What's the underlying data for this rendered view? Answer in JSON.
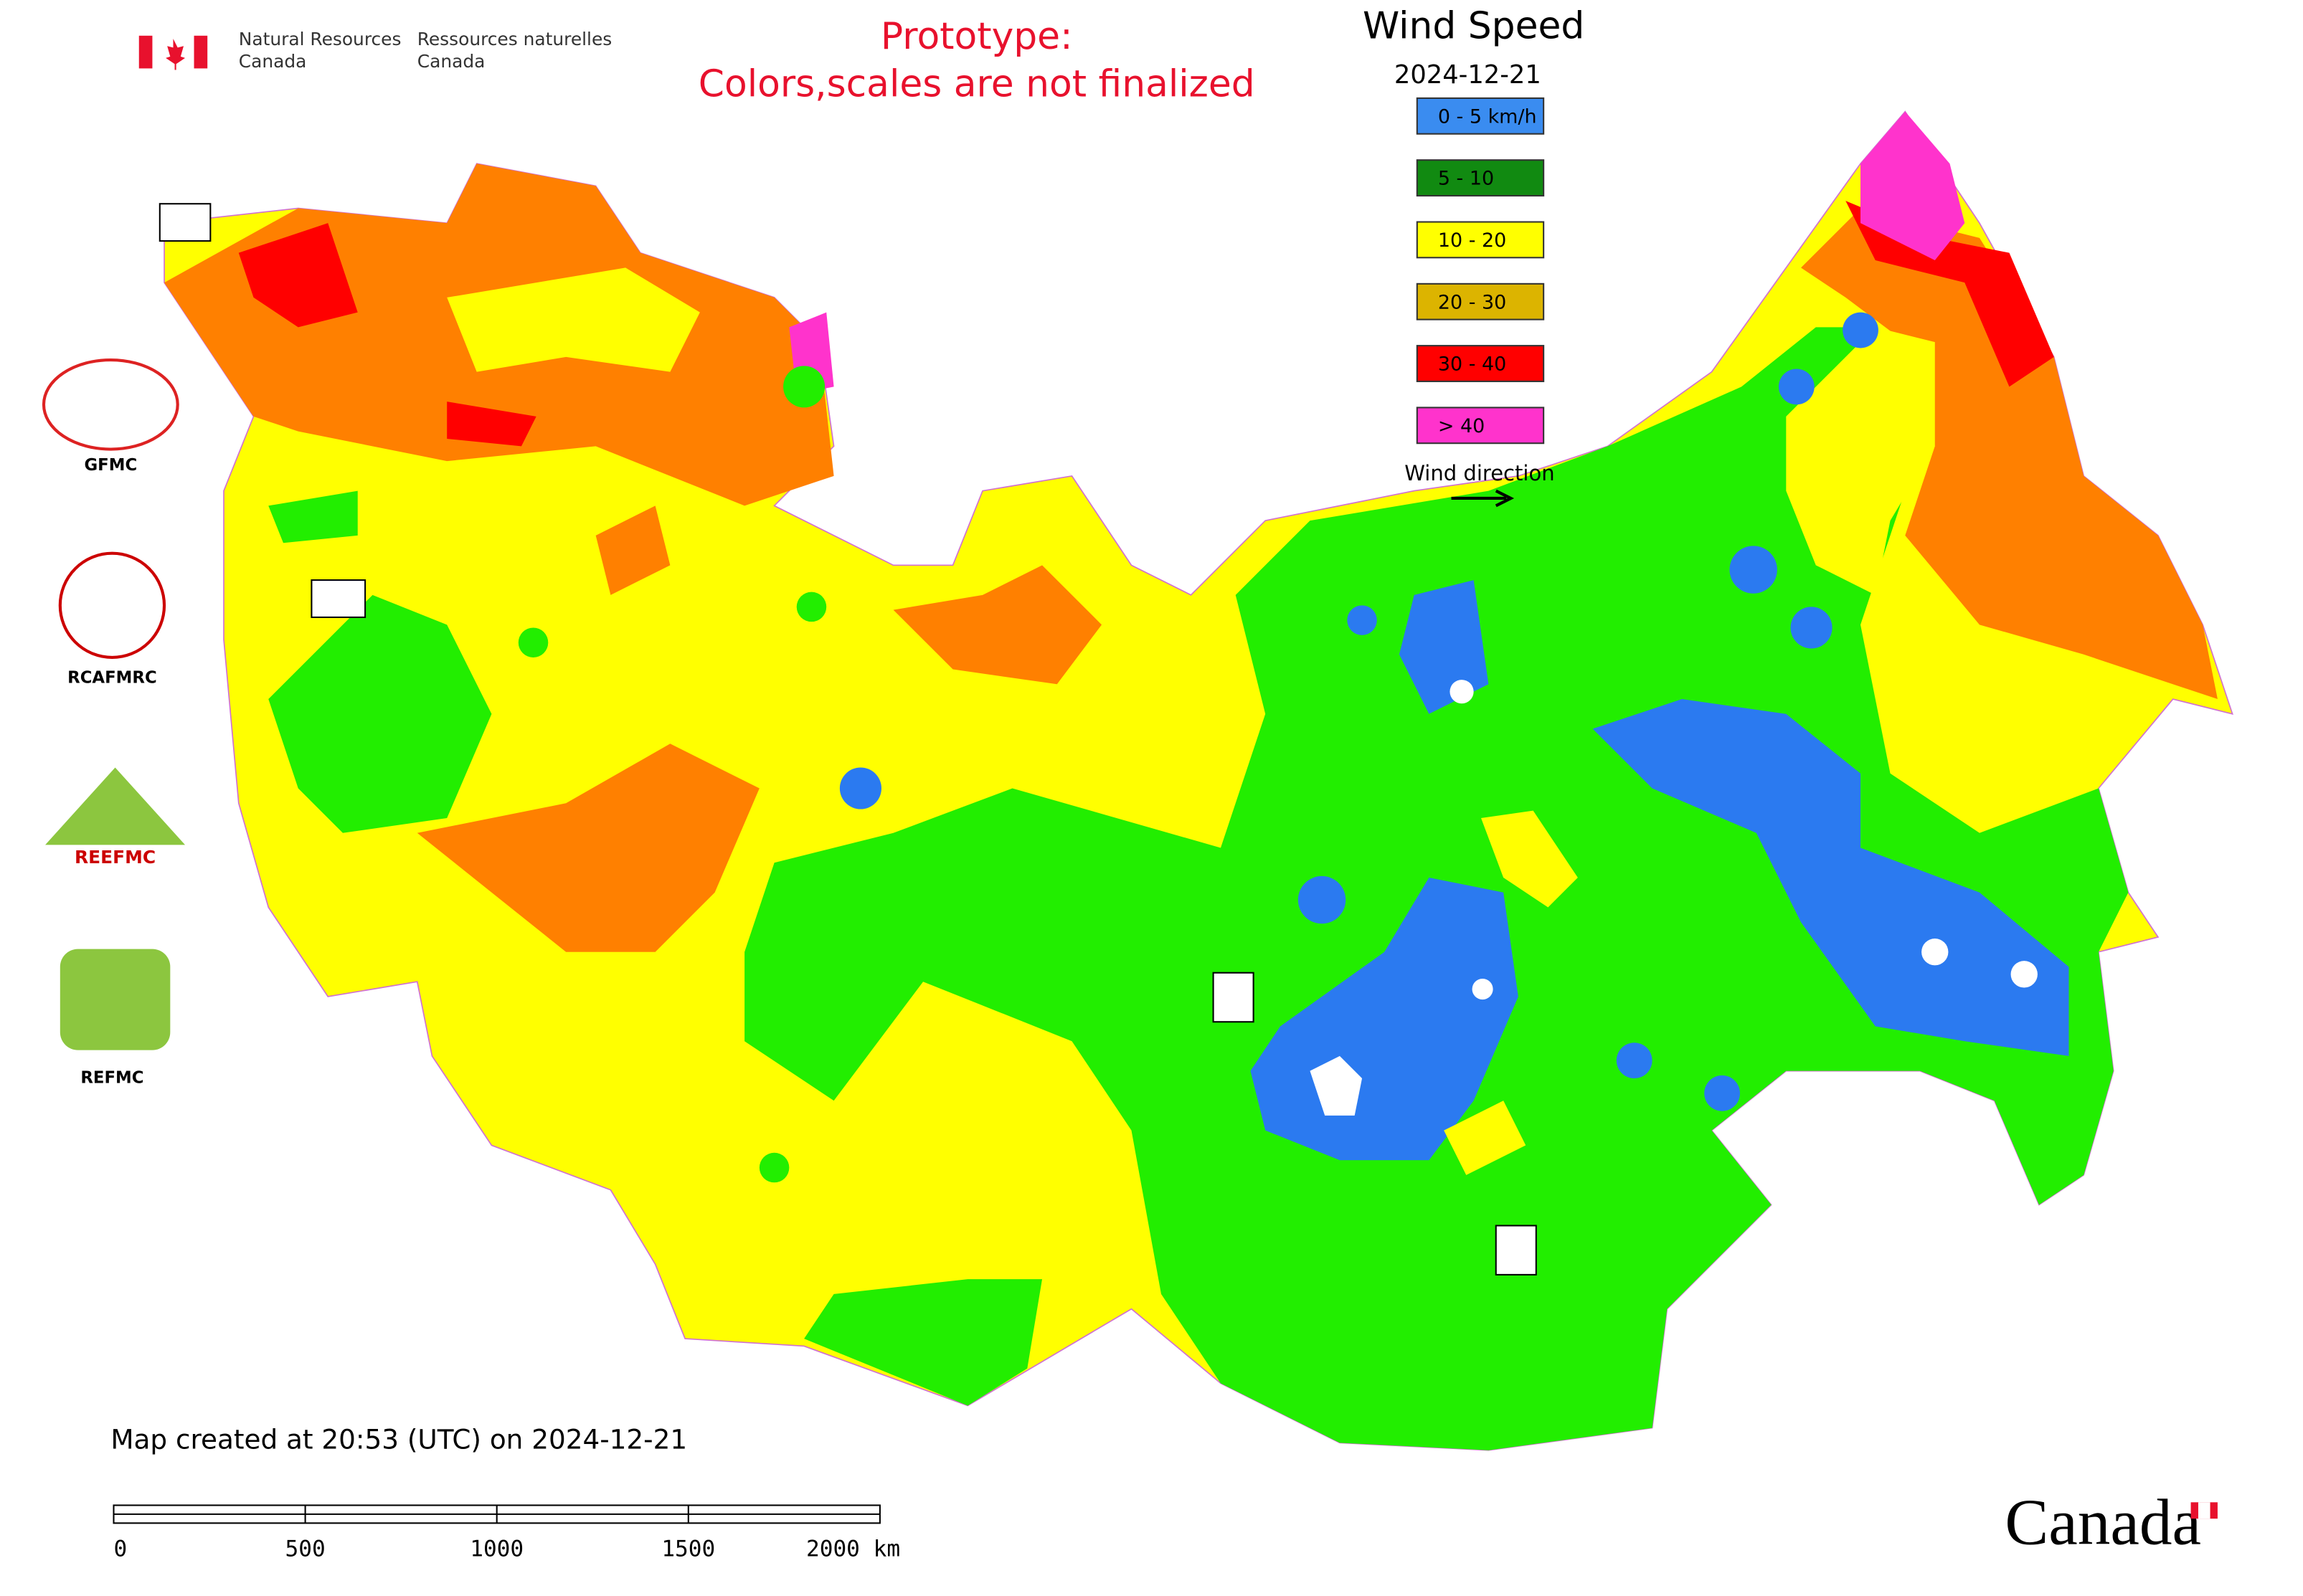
{
  "header": {
    "agency_en": [
      "Natural Resources",
      "Canada"
    ],
    "agency_fr": [
      "Ressources naturelles",
      "Canada"
    ]
  },
  "notice": [
    "Prototype:",
    "Colors,scales are not finalized"
  ],
  "legend": {
    "title": "Wind Speed",
    "date": "2024-12-21",
    "items": [
      {
        "label": "0 - 5 km/h",
        "color": "#3a8cf0"
      },
      {
        "label": "5 - 10",
        "color": "#118a11"
      },
      {
        "label": "10 - 20",
        "color": "#ffff00"
      },
      {
        "label": "20 - 30",
        "color": "#dcb400"
      },
      {
        "label": "30 - 40",
        "color": "#ff0000"
      },
      {
        "label": "> 40",
        "color": "#ff33cc"
      }
    ],
    "direction_label": "Wind direction"
  },
  "logos": [
    "GFMC",
    "RCAFMRC",
    "REEFMC",
    "REFMC"
  ],
  "footer": {
    "created": "Map created at 20:53 (UTC) on 2024-12-21",
    "scale_labels": [
      "0",
      "500",
      "1000",
      "1500",
      "2000 km"
    ]
  },
  "wordmark": "Canada"
}
